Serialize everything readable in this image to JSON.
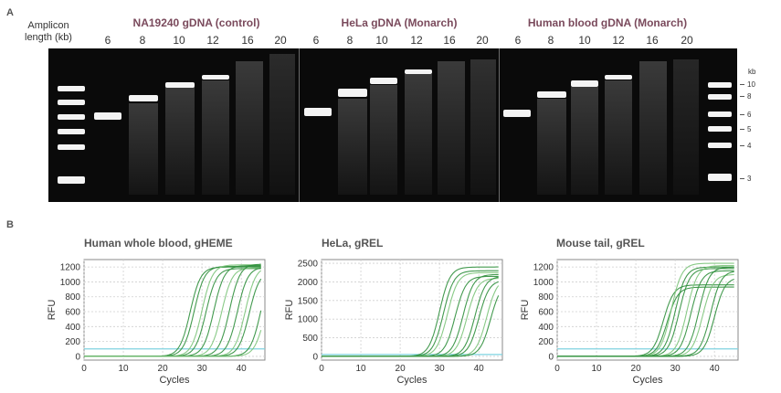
{
  "panel_a": {
    "letter": "A",
    "amplicon_label_line1": "Amplicon",
    "amplicon_label_line2": "length (kb)",
    "groups": [
      {
        "title": "NA19240 gDNA (control)",
        "lanes": [
          "6",
          "8",
          "10",
          "12",
          "16",
          "20"
        ]
      },
      {
        "title": "HeLa gDNA (Monarch)",
        "lanes": [
          "6",
          "8",
          "10",
          "12",
          "16",
          "20"
        ]
      },
      {
        "title": "Human blood gDNA (Monarch)",
        "lanes": [
          "6",
          "8",
          "10",
          "12",
          "16",
          "20"
        ]
      }
    ],
    "ladder_unit": "kb",
    "ladder_marks": [
      "10",
      "8",
      "6",
      "5",
      "4",
      "3"
    ]
  },
  "panel_b": {
    "letter": "B",
    "chart_data": [
      {
        "type": "line",
        "title": "Human whole blood, gHEME",
        "xlabel": "Cycles",
        "ylabel": "RFU",
        "xlim": [
          0,
          46
        ],
        "ylim": [
          -50,
          1300
        ],
        "xticks": [
          0,
          10,
          20,
          30,
          40
        ],
        "yticks": [
          0,
          200,
          400,
          600,
          800,
          1000,
          1200
        ],
        "threshold": 100,
        "series_ct": [
          24,
          25,
          27,
          28,
          30,
          32,
          34,
          36,
          38,
          39,
          42,
          43
        ],
        "plateau": [
          1200,
          1210,
          1230,
          1180,
          1220,
          1190,
          1240,
          1200,
          1210,
          1150,
          1230,
          1100
        ]
      },
      {
        "type": "line",
        "title": "HeLa, gREL",
        "xlabel": "Cycles",
        "ylabel": "RFU",
        "xlim": [
          0,
          46
        ],
        "ylim": [
          -100,
          2600
        ],
        "xticks": [
          0,
          10,
          20,
          30,
          40
        ],
        "yticks": [
          0,
          500,
          1000,
          1500,
          2000,
          2500
        ],
        "threshold": 50,
        "series_ct": [
          27,
          28,
          29,
          31,
          33,
          34,
          36,
          37,
          39,
          40
        ],
        "plateau": [
          2400,
          2300,
          2250,
          2150,
          2200,
          2100,
          2150,
          2050,
          2100,
          2000
        ]
      },
      {
        "type": "line",
        "title": "Mouse tail, gREL",
        "xlabel": "Cycles",
        "ylabel": "RFU",
        "xlim": [
          0,
          46
        ],
        "ylim": [
          -50,
          1300
        ],
        "xticks": [
          0,
          10,
          20,
          30,
          40
        ],
        "yticks": [
          0,
          200,
          400,
          600,
          800,
          1000,
          1200
        ],
        "threshold": 100,
        "series_ct": [
          24,
          25,
          26,
          27,
          28,
          30,
          31,
          33,
          34,
          36,
          37
        ],
        "plateau": [
          960,
          930,
          1250,
          1200,
          1180,
          1220,
          1150,
          1200,
          1100,
          1150,
          1060
        ]
      }
    ]
  },
  "colors": {
    "curve": "#2f8f3c",
    "curve_light": "#7cc47a",
    "threshold": "#7fd3e0",
    "group_title": "#7a4a5c"
  }
}
